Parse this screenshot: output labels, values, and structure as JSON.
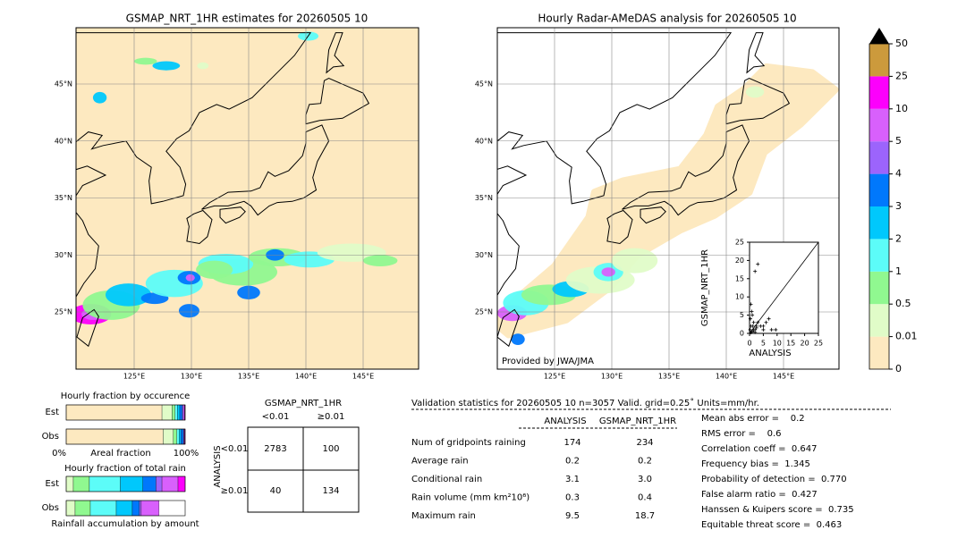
{
  "left_map": {
    "title": "GSMAP_NRT_1HR estimates for 20260505 10",
    "lat_labels": [
      "45°N",
      "40°N",
      "35°N",
      "30°N",
      "25°N"
    ],
    "lon_labels": [
      "125°E",
      "130°E",
      "135°E",
      "140°E",
      "145°E"
    ]
  },
  "right_map": {
    "title": "Hourly Radar-AMeDAS analysis for 20260505 10",
    "lat_labels": [
      "45°N",
      "40°N",
      "35°N",
      "30°N",
      "25°N"
    ],
    "lon_labels": [
      "125°E",
      "130°E",
      "135°E",
      "140°E",
      "145°E"
    ],
    "credit": "Provided by JWA/JMA"
  },
  "inset": {
    "xlabel": "ANALYSIS",
    "ylabel": "GSMAP_NRT_1HR",
    "xlim": [
      0,
      25
    ],
    "ylim": [
      0,
      25
    ],
    "xticks": [
      0,
      5,
      10,
      15,
      20,
      25
    ],
    "yticks": [
      0,
      5,
      10,
      15,
      20,
      25
    ],
    "points_x": [
      0.2,
      0.5,
      1,
      1.5,
      2,
      0.3,
      0.8,
      1.2,
      2.5,
      3,
      0.5,
      1,
      4,
      5,
      6,
      7,
      8,
      2,
      3,
      1,
      0.5,
      1.5,
      2,
      2.5,
      5,
      9.5
    ],
    "points_y": [
      1,
      2,
      0.5,
      3,
      1,
      4,
      6,
      2,
      1.5,
      3,
      8,
      5,
      2,
      1,
      3,
      4,
      1,
      17,
      19,
      0.5,
      0.2,
      1,
      0.3,
      2,
      2,
      1
    ]
  },
  "colorbar": {
    "ticks": [
      0,
      0.01,
      0.5,
      1,
      2,
      3,
      4,
      5,
      10,
      25,
      50
    ],
    "colors": [
      "#fde9c0",
      "#e0fcc8",
      "#90f890",
      "#5cfcf8",
      "#00c8fc",
      "#0078fc",
      "#9c64fc",
      "#d860fc",
      "#fc00fc",
      "#cc9a3c"
    ],
    "extend_color": "#000000"
  },
  "occurrence": {
    "title": "Hourly fraction by occurence",
    "rows": [
      "Est",
      "Obs"
    ],
    "axis_left": "0%",
    "axis_label": "Areal fraction",
    "axis_right": "100%",
    "est": [
      80.5,
      8.5,
      2.5,
      2,
      2,
      2,
      1,
      1,
      0.5,
      0
    ],
    "obs": [
      81.5,
      8.5,
      3,
      2,
      1.5,
      2,
      0.5,
      0.5,
      0.5,
      0
    ]
  },
  "total_rain": {
    "title": "Hourly fraction of total rain",
    "rows": [
      "Est",
      "Obs"
    ],
    "footer": "Rainfall accumulation by amount",
    "est": [
      0,
      6,
      13.5,
      26,
      19,
      11,
      5,
      13.5,
      6,
      0
    ],
    "obs": [
      0,
      7.5,
      12.8,
      21.8,
      13.5,
      6,
      1.5,
      15,
      0,
      0
    ]
  },
  "contingency": {
    "title": "GSMAP_NRT_1HR",
    "col_headers": [
      "<0.01",
      "≥0.01"
    ],
    "row_title": "ANALYSIS",
    "row_headers": [
      "<0.01",
      "≥0.01"
    ],
    "cells": [
      [
        2783,
        100
      ],
      [
        40,
        134
      ]
    ]
  },
  "validation": {
    "header": "Validation statistics for 20260505 10  n=3057 Valid. grid=0.25˚ Units=mm/hr.",
    "columns": [
      "ANALYSIS",
      "GSMAP_NRT_1HR"
    ],
    "rows": [
      [
        "Num of gridpoints raining",
        "174",
        "234"
      ],
      [
        "Average rain",
        "0.2",
        "0.2"
      ],
      [
        "Conditional rain",
        "3.1",
        "3.0"
      ],
      [
        "Rain volume (mm km²10⁶)",
        "0.3",
        "0.4"
      ],
      [
        "Maximum rain",
        "9.5",
        "18.7"
      ]
    ]
  },
  "scores": [
    "Mean abs error =    0.2",
    "RMS error =    0.6",
    "Correlation coeff =  0.647",
    "Frequency bias =  1.345",
    "Probability of detection =  0.770",
    "False alarm ratio =  0.427",
    "Hanssen & Kuipers score =  0.735",
    "Equitable threat score =  0.463"
  ]
}
